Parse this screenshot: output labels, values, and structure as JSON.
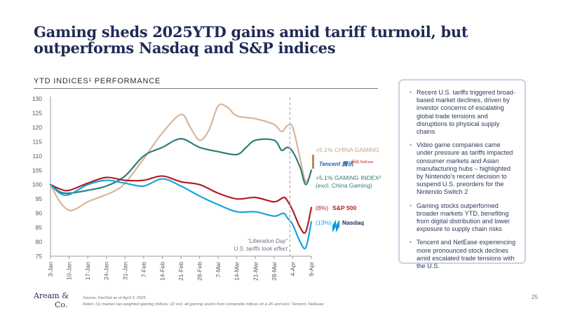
{
  "title": "Gaming sheds 2025YTD gains amid tariff turmoil, but outperforms Nasdaq and S&P indices",
  "section_label": "YTD INDICES¹ PERFORMANCE",
  "panel": {
    "bullets": [
      "Recent U.S. tariffs triggered broad-based market declines, driven by investor concerns of escalating global trade tensions and disruptions to physical supply chains",
      "Video game companies came under pressure as tariffs impacted consumer markets and Asian manufacturing hubs – highlighted by Nintendo’s recent decision to suspend U.S. preorders for the Nintendo Switch 2",
      "Gaming stocks outperformed broader markets YTD, benefiting from digital distribution and lower exposure to supply chain risks",
      "Tencent and NetEase experiencing more pronounced stock declines amid escalated trade tensions with the U.S."
    ]
  },
  "annotations": {
    "china_gaming": "+5.1% CHINA GAMING",
    "gaming_index_line1": "+5.1% GAMING INDEX²",
    "gaming_index_line2": "(excl. China Gaming)",
    "sp_pct": "(8%)",
    "sp_name": "S&P 500",
    "nasdaq_pct": "(13%)",
    "nasdaq_name": "Nasdaq",
    "tencent_logo": "Tencent 腾讯",
    "netease_logo": "网易 NetEase",
    "liberation_line1": "“Liberation Day”",
    "liberation_line2": "U.S. tariffs took effect"
  },
  "footer": {
    "source": "Source: FactSet as of April 9, 2025",
    "notes": "Notes: (1) market cap-weighted gaming indices; (2) incl. all gaming stocks from composite indices on p.26 and excl. Tencent, NetEase",
    "brand_line1": "Aream &",
    "brand_line2": "Co.",
    "page": "25"
  },
  "colors": {
    "china_gaming": "#d8b59a",
    "gaming_index": "#2f7f78",
    "sp500": "#b01e24",
    "nasdaq": "#1aa3dc",
    "title": "#1f2a55"
  },
  "chart_data": {
    "type": "line",
    "x": [
      "3-Jan",
      "10-Jan",
      "17-Jan",
      "24-Jan",
      "31-Jan",
      "7-Feb",
      "14-Feb",
      "21-Feb",
      "28-Feb",
      "7-Mar",
      "14-Mar",
      "21-Mar",
      "28-Mar",
      "4-Apr",
      "9-Apr"
    ],
    "ylim": [
      75,
      130
    ],
    "yticks": [
      75,
      80,
      85,
      90,
      95,
      100,
      105,
      110,
      115,
      120,
      125,
      130
    ],
    "grid": false,
    "vline_at": 12.85,
    "series": [
      {
        "name": "+5.1% CHINA GAMING",
        "color": "#d8b59a",
        "points": [
          [
            0,
            100
          ],
          [
            0.5,
            94
          ],
          [
            1,
            91
          ],
          [
            1.5,
            92
          ],
          [
            2,
            94
          ],
          [
            3,
            96.5
          ],
          [
            3.5,
            98
          ],
          [
            4,
            100.5
          ],
          [
            5,
            109
          ],
          [
            6,
            118
          ],
          [
            7,
            124.5
          ],
          [
            7.5,
            120
          ],
          [
            8,
            115.5
          ],
          [
            8.5,
            119
          ],
          [
            9,
            127.5
          ],
          [
            9.5,
            127
          ],
          [
            10,
            124
          ],
          [
            11,
            123
          ],
          [
            12,
            121
          ],
          [
            12.4,
            118.5
          ],
          [
            12.7,
            120.5
          ],
          [
            13,
            120
          ],
          [
            13.4,
            109
          ],
          [
            13.7,
            101
          ],
          [
            14,
            105
          ]
        ]
      },
      {
        "name": "+5.1% GAMING INDEX²",
        "color": "#2f7f78",
        "points": [
          [
            0,
            100
          ],
          [
            0.5,
            97.5
          ],
          [
            1,
            97
          ],
          [
            2,
            98
          ],
          [
            3,
            99.5
          ],
          [
            4,
            103
          ],
          [
            5,
            110
          ],
          [
            6,
            113
          ],
          [
            7,
            116
          ],
          [
            8,
            113
          ],
          [
            9,
            111.5
          ],
          [
            10,
            110.5
          ],
          [
            10.5,
            113
          ],
          [
            11,
            115.5
          ],
          [
            12,
            115.5
          ],
          [
            12.4,
            112
          ],
          [
            12.7,
            113
          ],
          [
            13,
            111.5
          ],
          [
            13.4,
            106
          ],
          [
            13.7,
            100
          ],
          [
            14,
            105
          ]
        ]
      },
      {
        "name": "S&P 500",
        "color": "#b01e24",
        "points": [
          [
            0,
            100
          ],
          [
            0.5,
            98.5
          ],
          [
            1,
            98
          ],
          [
            2,
            100.5
          ],
          [
            3,
            102.5
          ],
          [
            4,
            101.5
          ],
          [
            5,
            101.5
          ],
          [
            6,
            103
          ],
          [
            7,
            101
          ],
          [
            8,
            100
          ],
          [
            9,
            97
          ],
          [
            10,
            95
          ],
          [
            11,
            95.5
          ],
          [
            12,
            94
          ],
          [
            12.5,
            95.5
          ],
          [
            12.7,
            94.5
          ],
          [
            13,
            91
          ],
          [
            13.4,
            85
          ],
          [
            13.7,
            83.5
          ],
          [
            14,
            92
          ]
        ]
      },
      {
        "name": "Nasdaq",
        "color": "#1aa3dc",
        "points": [
          [
            0,
            100
          ],
          [
            0.5,
            97
          ],
          [
            1,
            96.5
          ],
          [
            2,
            100
          ],
          [
            3,
            101.5
          ],
          [
            4,
            100.5
          ],
          [
            5,
            99.5
          ],
          [
            6,
            102
          ],
          [
            7,
            99.5
          ],
          [
            8,
            96
          ],
          [
            9,
            93
          ],
          [
            10,
            90.5
          ],
          [
            11,
            90.5
          ],
          [
            12,
            89
          ],
          [
            12.5,
            90
          ],
          [
            12.7,
            88.5
          ],
          [
            13,
            86
          ],
          [
            13.4,
            80
          ],
          [
            13.7,
            78
          ],
          [
            14,
            87
          ]
        ]
      }
    ]
  }
}
